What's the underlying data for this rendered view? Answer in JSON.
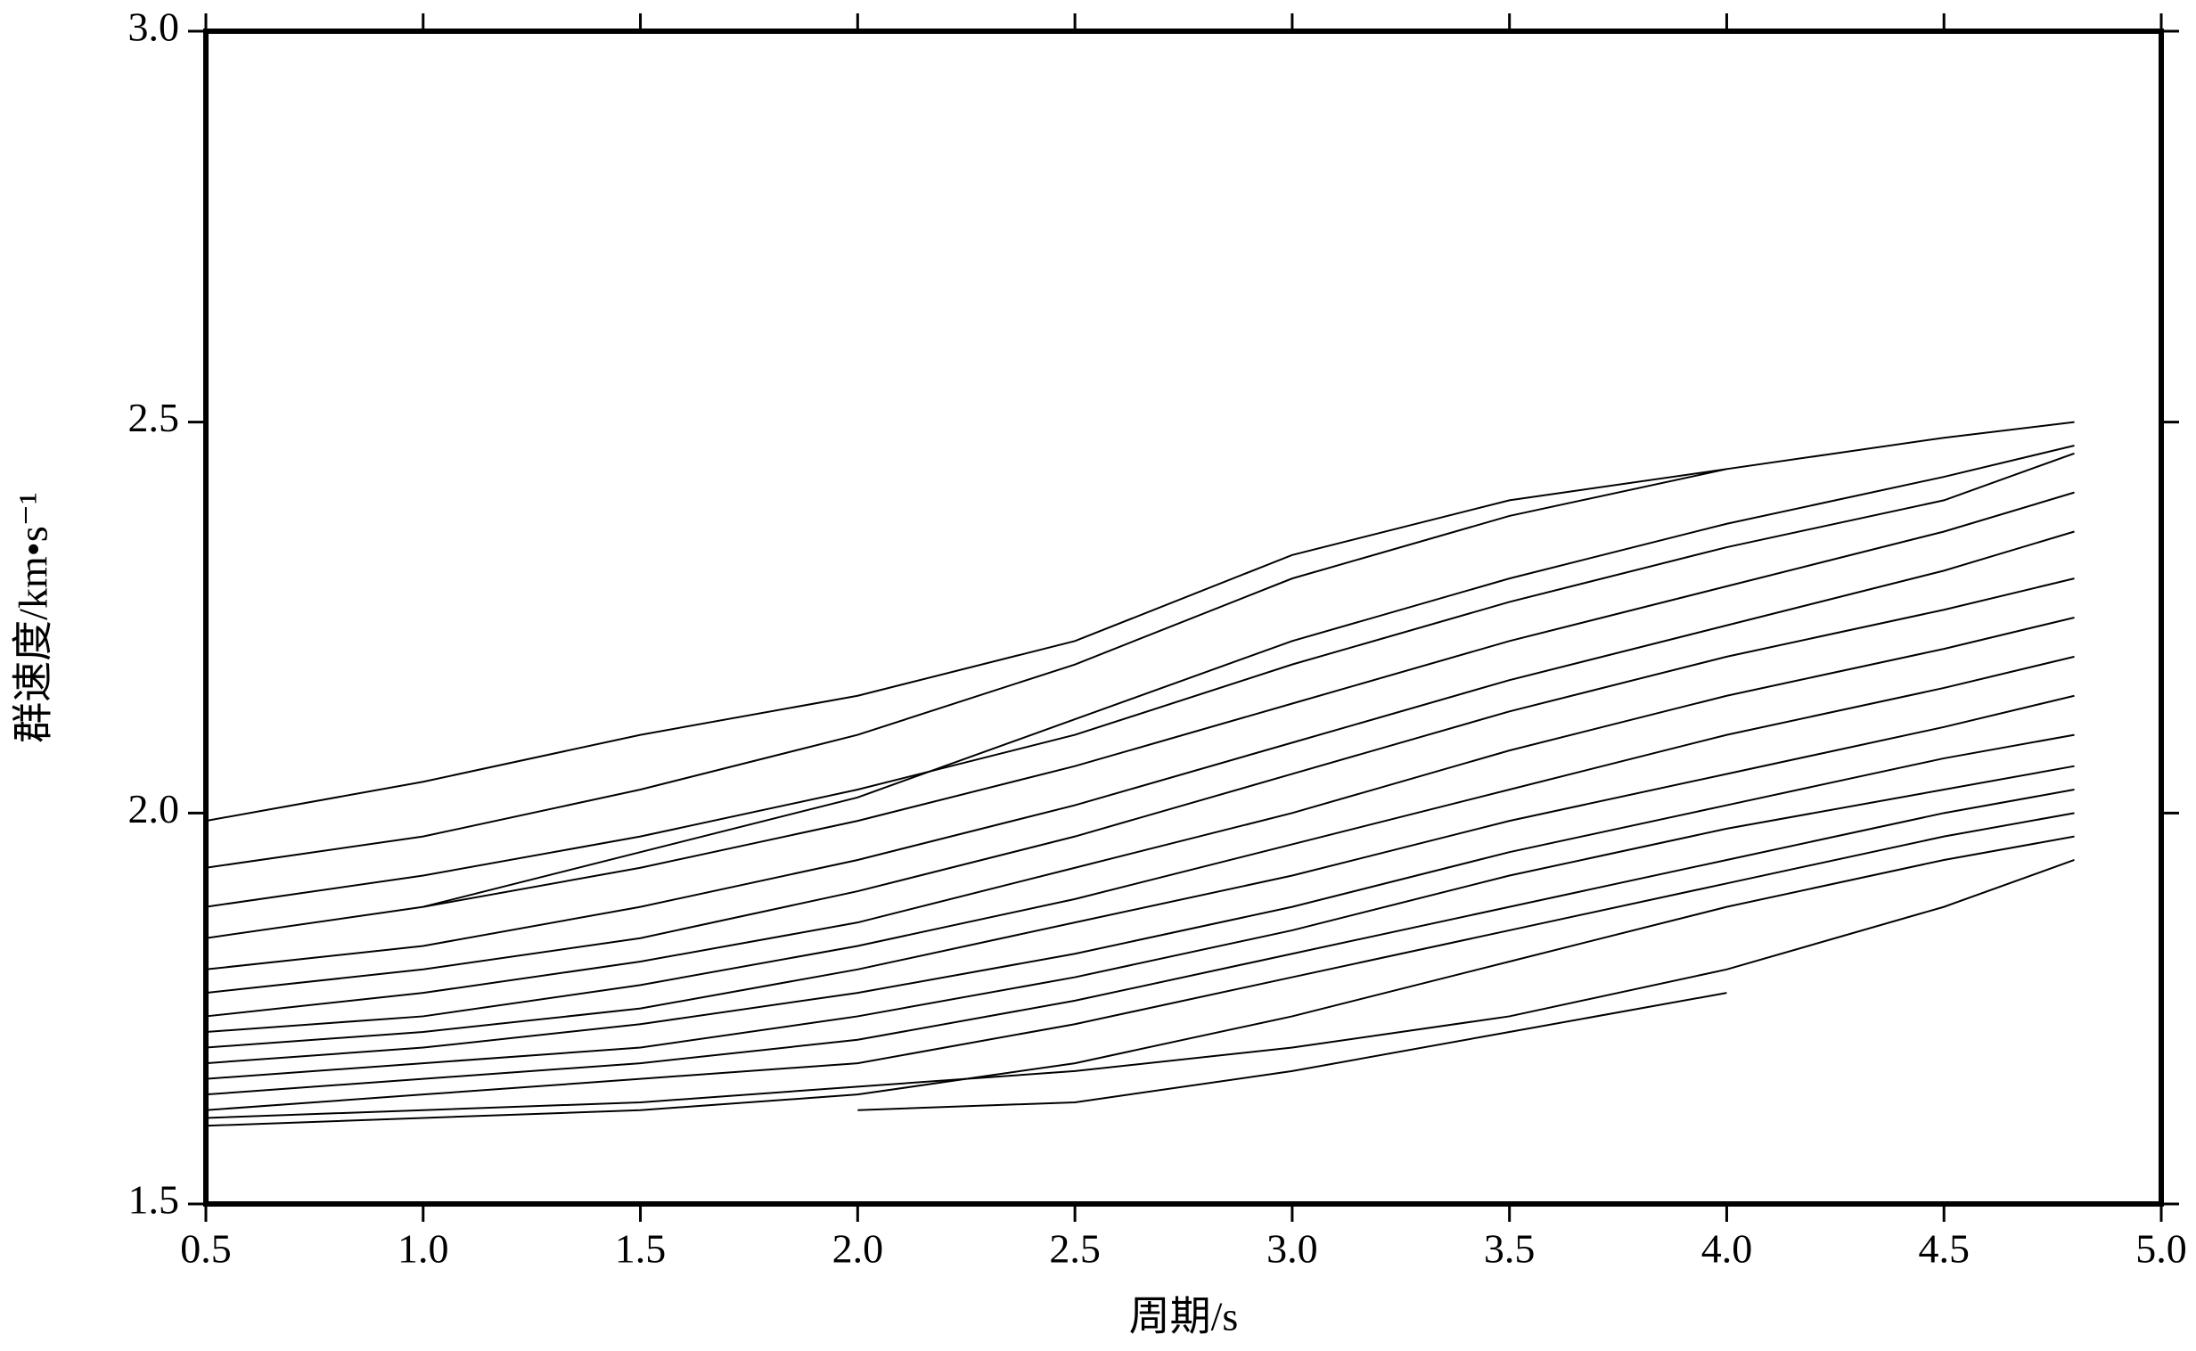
{
  "chart_data": {
    "type": "line",
    "xlabel": "周期/s",
    "ylabel": "群速度/km•s⁻¹",
    "x": [
      0.5,
      1.0,
      1.5,
      2.0,
      2.5,
      3.0,
      3.5,
      4.0,
      4.5,
      4.8
    ],
    "series": [
      {
        "color": "#000000",
        "values": [
          1.99,
          2.04,
          2.1,
          2.15,
          2.22,
          2.33,
          2.4,
          2.44,
          null,
          null
        ]
      },
      {
        "color": "#000000",
        "values": [
          1.93,
          1.97,
          2.03,
          2.1,
          2.19,
          2.3,
          2.38,
          2.44,
          2.48,
          2.5
        ]
      },
      {
        "color": "#000000",
        "values": [
          null,
          1.88,
          1.95,
          2.02,
          2.12,
          2.22,
          2.3,
          2.37,
          2.43,
          2.47
        ]
      },
      {
        "color": "#000000",
        "values": [
          1.88,
          1.92,
          1.97,
          2.03,
          2.1,
          2.19,
          2.27,
          2.34,
          2.4,
          2.46
        ]
      },
      {
        "color": "#000000",
        "values": [
          1.84,
          1.88,
          1.93,
          1.99,
          2.06,
          2.14,
          2.22,
          2.29,
          2.36,
          2.41
        ]
      },
      {
        "color": "#000000",
        "values": [
          1.8,
          1.83,
          1.88,
          1.94,
          2.01,
          2.09,
          2.17,
          2.24,
          2.31,
          2.36
        ]
      },
      {
        "color": "#000000",
        "values": [
          1.77,
          1.8,
          1.84,
          1.9,
          1.97,
          2.05,
          2.13,
          2.2,
          2.26,
          2.3
        ]
      },
      {
        "color": "#000000",
        "values": [
          1.74,
          1.77,
          1.81,
          1.86,
          1.93,
          2.0,
          2.08,
          2.15,
          2.21,
          2.25
        ]
      },
      {
        "color": "#000000",
        "values": [
          1.72,
          1.74,
          1.78,
          1.83,
          1.89,
          1.96,
          2.03,
          2.1,
          2.16,
          2.2
        ]
      },
      {
        "color": "#000000",
        "values": [
          1.7,
          1.72,
          1.75,
          1.8,
          1.86,
          1.92,
          1.99,
          2.05,
          2.11,
          2.15
        ]
      },
      {
        "color": "#000000",
        "values": [
          1.68,
          1.7,
          1.73,
          1.77,
          1.82,
          1.88,
          1.95,
          2.01,
          2.07,
          2.1
        ]
      },
      {
        "color": "#000000",
        "values": [
          1.66,
          1.68,
          1.7,
          1.74,
          1.79,
          1.85,
          1.92,
          1.98,
          2.03,
          2.06
        ]
      },
      {
        "color": "#000000",
        "values": [
          1.64,
          1.66,
          1.68,
          1.71,
          1.76,
          1.82,
          1.88,
          1.94,
          2.0,
          2.03
        ]
      },
      {
        "color": "#000000",
        "values": [
          1.62,
          1.64,
          1.66,
          1.68,
          1.73,
          1.79,
          1.85,
          1.91,
          1.97,
          2.0
        ]
      },
      {
        "color": "#000000",
        "values": [
          1.6,
          1.61,
          1.62,
          1.64,
          1.68,
          1.74,
          1.81,
          1.88,
          1.94,
          1.97
        ]
      },
      {
        "color": "#000000",
        "values": [
          1.61,
          1.62,
          1.63,
          1.65,
          1.67,
          1.7,
          1.74,
          1.8,
          1.88,
          1.94
        ]
      },
      {
        "color": "#000000",
        "values": [
          null,
          null,
          null,
          1.62,
          1.63,
          1.67,
          1.72,
          1.77,
          null,
          null
        ]
      }
    ],
    "xlim": [
      0.5,
      5.0
    ],
    "xticks": [
      0.5,
      {
        "value": 1.0,
        "label": "1.0"
      },
      1.5,
      {
        "value": 2.0,
        "label": "2.0"
      },
      2.5,
      {
        "value": 3.0,
        "label": "3.0"
      },
      3.5,
      {
        "value": 4.0,
        "label": "4.0"
      },
      4.5,
      {
        "value": 5.0,
        "label": "5.0"
      }
    ],
    "ylim": [
      1.5,
      3.0
    ],
    "yticks": [
      1.5,
      {
        "value": 2.0,
        "label": "2.0"
      },
      2.5,
      {
        "value": 3.0,
        "label": "3.0"
      }
    ],
    "grid": false
  }
}
